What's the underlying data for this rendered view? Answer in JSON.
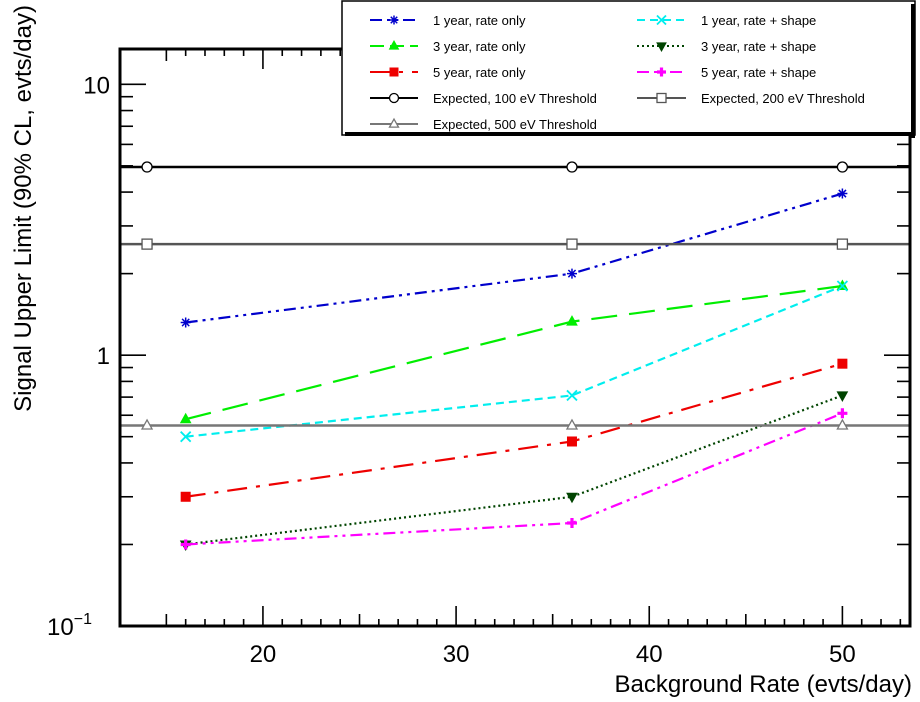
{
  "chart_data": {
    "type": "line",
    "xlabel": "Background Rate (evts/day)",
    "ylabel": "Signal Upper Limit (90% CL, evts/day)",
    "xlim": [
      12.6,
      53.5
    ],
    "ylim": [
      0.1,
      13.5
    ],
    "yscale": "log",
    "x_ticks": [
      20,
      30,
      40,
      50
    ],
    "x_tick_labels": [
      "20",
      "30",
      "40",
      "50"
    ],
    "y_ticks": [
      {
        "value": 0.1,
        "base": "10",
        "exp": "−1"
      },
      {
        "value": 1,
        "base": "1",
        "exp": ""
      },
      {
        "value": 10,
        "base": "10",
        "exp": ""
      }
    ],
    "grid": false,
    "legend_placement": "top-right",
    "series": [
      {
        "name": "1 year, rate only",
        "color": "#0000cc",
        "dash": "dash-dot-dot",
        "marker": "asterisk",
        "x": [
          16,
          36,
          50
        ],
        "values": [
          1.32,
          2.0,
          3.95
        ]
      },
      {
        "name": "3 year, rate only",
        "color": "#00ee00",
        "dash": "long-dash",
        "marker": "triangle-up",
        "x": [
          16,
          36,
          50
        ],
        "values": [
          0.58,
          1.33,
          1.8
        ]
      },
      {
        "name": "5 year, rate only",
        "color": "#ee0000",
        "dash": "dash-dot",
        "marker": "square",
        "x": [
          16,
          36,
          50
        ],
        "values": [
          0.3,
          0.48,
          0.93
        ]
      },
      {
        "name": "1 year, rate + shape",
        "color": "#00eeee",
        "dash": "dash",
        "marker": "cross",
        "x": [
          16,
          36,
          50
        ],
        "values": [
          0.5,
          0.71,
          1.8
        ]
      },
      {
        "name": "3 year, rate + shape",
        "color": "#004400",
        "dash": "dot",
        "marker": "triangle-down",
        "x": [
          16,
          36,
          50
        ],
        "values": [
          0.2,
          0.3,
          0.71
        ]
      },
      {
        "name": "5 year, rate + shape",
        "color": "#ff00ff",
        "dash": "dash-dot-dot",
        "marker": "plus",
        "x": [
          16,
          36,
          50
        ],
        "values": [
          0.2,
          0.24,
          0.61
        ]
      },
      {
        "name": "Expected, 100 eV Threshold",
        "color": "#000000",
        "dash": "solid",
        "marker": "open-circle",
        "x": [
          14,
          36,
          50
        ],
        "values": [
          4.95,
          4.95,
          4.95
        ],
        "horizontal": true
      },
      {
        "name": "Expected, 200 eV Threshold",
        "color": "#555555",
        "dash": "solid",
        "marker": "open-square",
        "x": [
          14,
          36,
          50
        ],
        "values": [
          2.57,
          2.57,
          2.57
        ],
        "horizontal": true
      },
      {
        "name": "Expected, 500 eV Threshold",
        "color": "#777777",
        "dash": "solid",
        "marker": "open-triangle",
        "x": [
          14,
          36,
          50
        ],
        "values": [
          0.55,
          0.55,
          0.55
        ],
        "horizontal": true
      }
    ]
  }
}
